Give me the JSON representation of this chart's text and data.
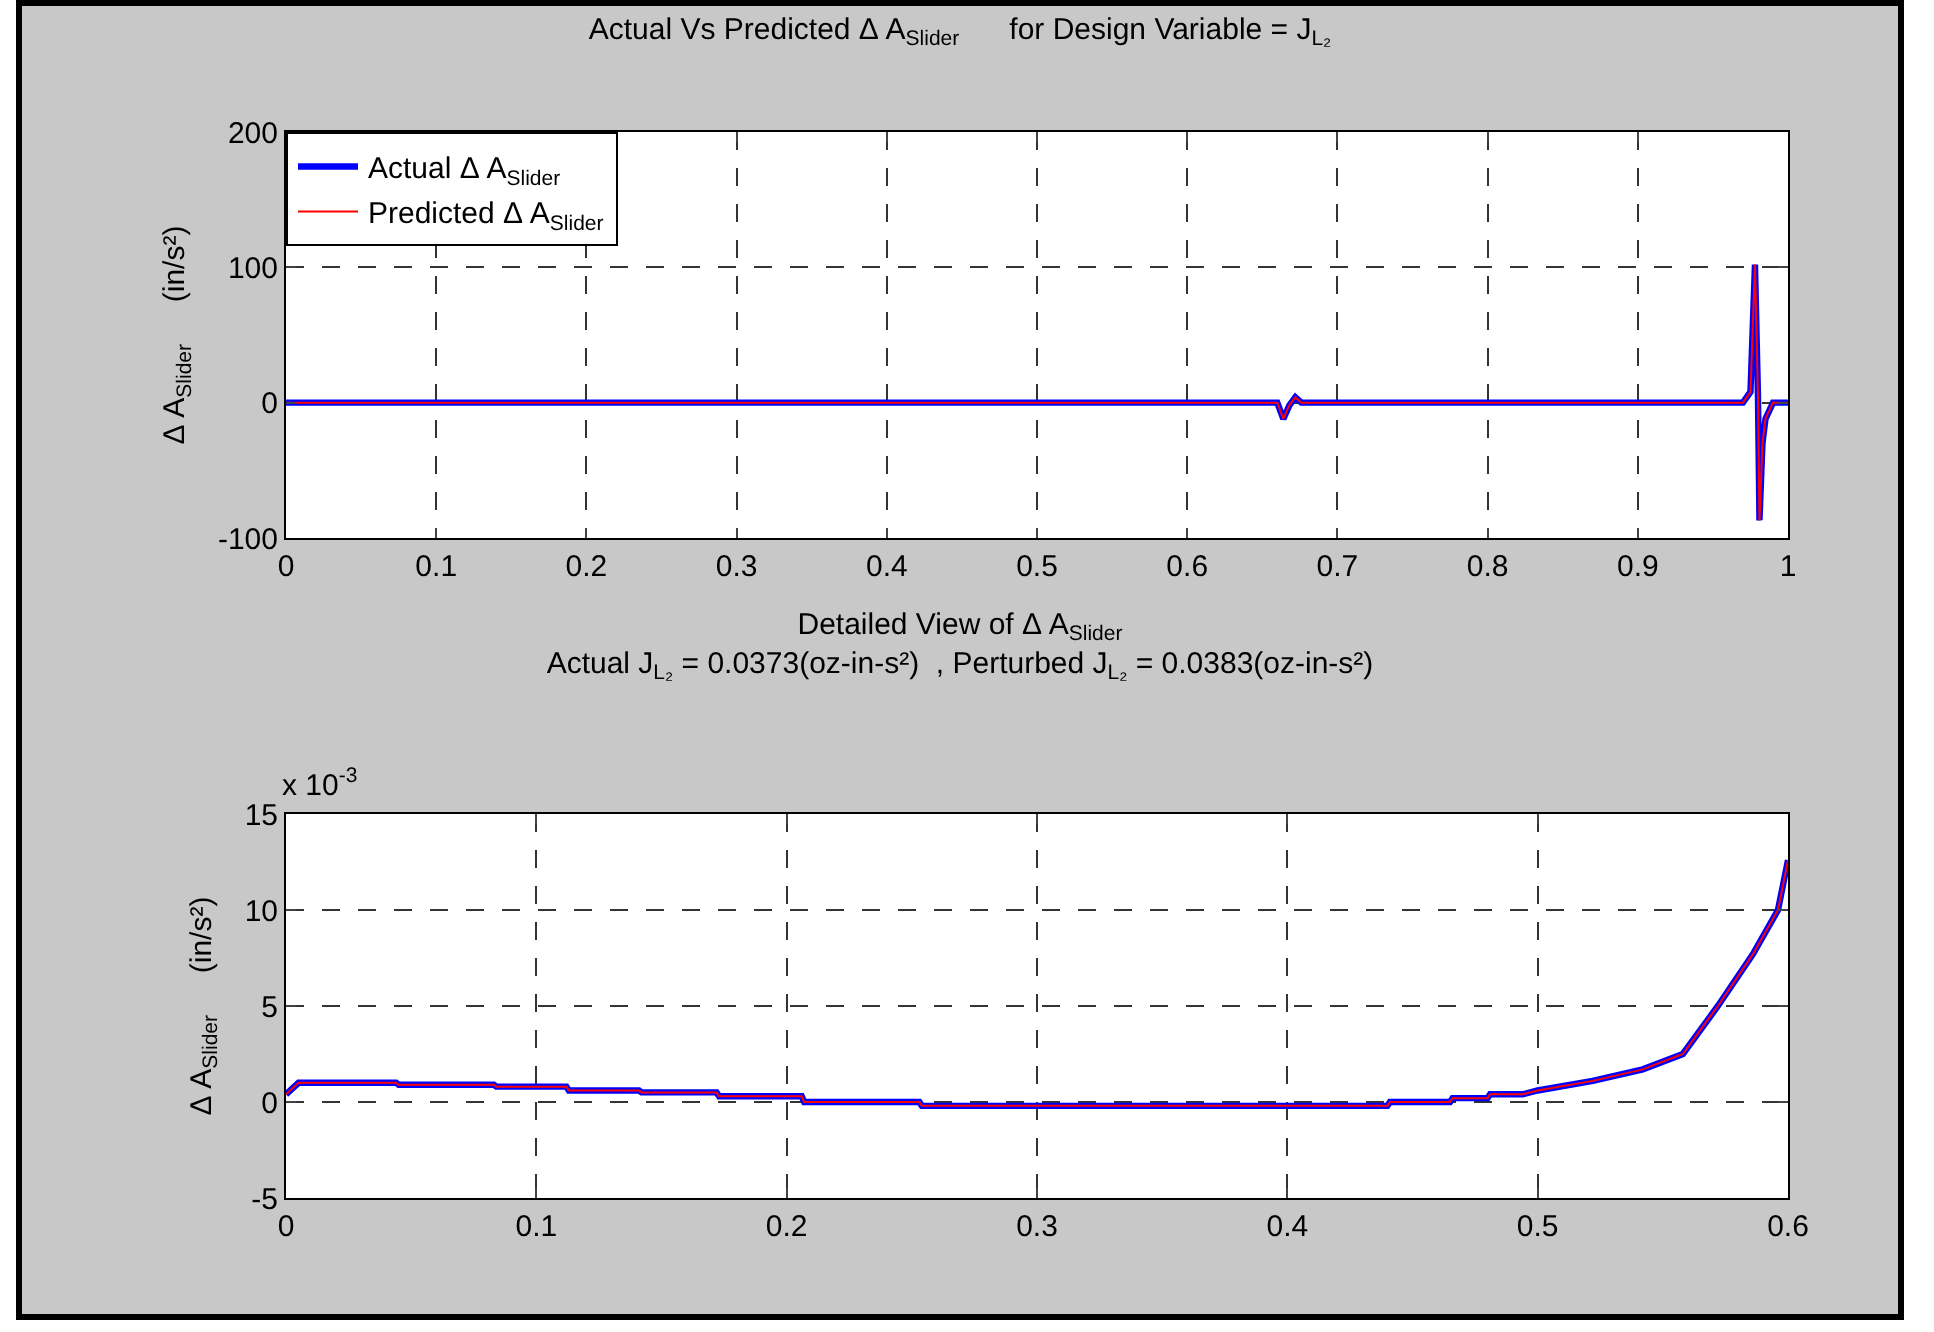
{
  "chart_data": [
    {
      "type": "line",
      "title": "Actual Vs Predicted Δ A$_{Slider}$      for Design Variable = J$_{L₂}$",
      "ylabel": "Δ A$_{Slider}$     (in/s²)",
      "x": [
        0,
        0.66,
        0.664,
        0.668,
        0.672,
        0.676,
        0.68,
        0.97,
        0.975,
        0.978,
        0.98,
        0.981,
        0.983,
        0.985,
        0.99,
        1
      ],
      "series": [
        {
          "name": "Actual Δ A$_{Slider}$",
          "color": "#0000ff",
          "values": [
            0,
            0,
            -12,
            -2,
            4,
            0,
            0,
            0,
            8,
            102,
            5,
            -87,
            -30,
            -12,
            0,
            0
          ]
        },
        {
          "name": "Predicted Δ A$_{Slider}$",
          "color": "#ff0000",
          "values": [
            0,
            0,
            -12,
            -2,
            4,
            0,
            0,
            0,
            8,
            102,
            5,
            -87,
            -30,
            -12,
            0,
            0
          ]
        }
      ],
      "xlim": [
        0,
        1
      ],
      "xticks": [
        0,
        0.1,
        0.2,
        0.3,
        0.4,
        0.5,
        0.6,
        0.7,
        0.8,
        0.9,
        1
      ],
      "ylim": [
        -100,
        200
      ],
      "yticks": [
        -100,
        0,
        100,
        200
      ],
      "grid": true,
      "legend": "top left",
      "marker": "none",
      "line_style": "solid"
    },
    {
      "type": "line",
      "title": "Detailed View of Δ A$_{Slider}$",
      "subtitle": "Actual J$_{L₂}$ = 0.0373(oz-in-s²)  , Perturbed J$_{L₂}$ = 0.0383(oz-in-s²)",
      "ylabel": "Δ A$_{Slider}$     (in/s²)",
      "annotations": [
        "x 10$^{-3}$"
      ],
      "x": [
        0,
        0.005,
        0.044,
        0.045,
        0.083,
        0.084,
        0.112,
        0.113,
        0.141,
        0.142,
        0.172,
        0.173,
        0.206,
        0.207,
        0.253,
        0.254,
        0.44,
        0.441,
        0.465,
        0.466,
        0.48,
        0.481,
        0.494,
        0.5,
        0.522,
        0.542,
        0.558,
        0.572,
        0.586,
        0.596,
        0.6
      ],
      "series": [
        {
          "color": "#0000ff",
          "values": [
            0.4,
            1,
            1,
            0.9,
            0.9,
            0.8,
            0.8,
            0.6,
            0.6,
            0.5,
            0.5,
            0.3,
            0.3,
            0,
            0,
            -0.2,
            -0.2,
            0,
            0,
            0.2,
            0.2,
            0.4,
            0.4,
            0.6,
            1.1,
            1.7,
            2.5,
            5,
            7.7,
            10,
            12.6
          ]
        },
        {
          "color": "#ff0000",
          "values": [
            0.4,
            1,
            1,
            0.9,
            0.9,
            0.8,
            0.8,
            0.6,
            0.6,
            0.5,
            0.5,
            0.3,
            0.3,
            0,
            0,
            -0.2,
            -0.2,
            0,
            0,
            0.2,
            0.2,
            0.4,
            0.4,
            0.6,
            1.1,
            1.7,
            2.5,
            5,
            7.7,
            10,
            12.6
          ]
        }
      ],
      "xlim": [
        0,
        0.6
      ],
      "xticks": [
        0,
        0.1,
        0.2,
        0.3,
        0.4,
        0.5,
        0.6
      ],
      "ylim": [
        -5,
        15
      ],
      "yticks": [
        -5,
        0,
        5,
        10,
        15
      ],
      "grid": true,
      "marker": "none",
      "line_style": "solid"
    }
  ]
}
